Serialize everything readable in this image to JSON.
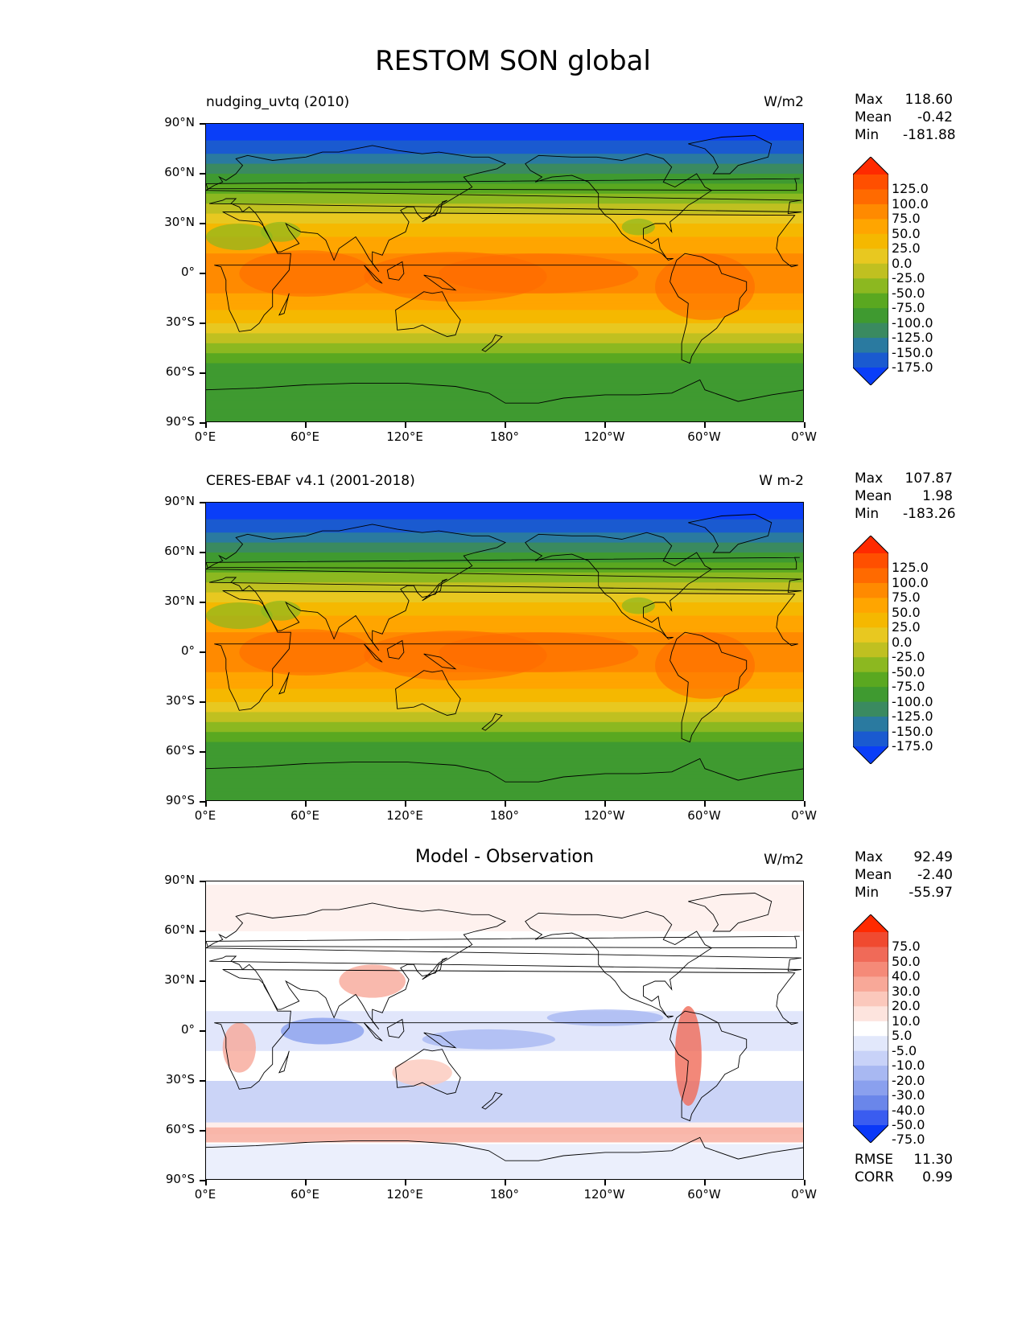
{
  "title": "RESTOM SON global",
  "axes": {
    "lat_ticks": [
      "90°N",
      "60°N",
      "30°N",
      "0°",
      "30°S",
      "60°S",
      "90°S"
    ],
    "lon_ticks": [
      "0°E",
      "60°E",
      "120°E",
      "180°",
      "120°W",
      "60°W",
      "0°W"
    ]
  },
  "panels": [
    {
      "id": "model",
      "left_title": "nudging_uvtq (2010)",
      "center_title": "",
      "units": "W/m2",
      "stats": {
        "max_label": "Max",
        "max": "118.60",
        "mean_label": "Mean",
        "mean": "-0.42",
        "min_label": "Min",
        "min": "-181.88"
      },
      "colorbar": {
        "levels": [
          "125.0",
          "100.0",
          "75.0",
          "50.0",
          "25.0",
          "0.0",
          "-25.0",
          "-50.0",
          "-75.0",
          "-100.0",
          "-125.0",
          "-150.0",
          "-175.0"
        ],
        "colors": [
          "#ff2a00",
          "#ff4f00",
          "#ff6a00",
          "#ff8a00",
          "#ffa500",
          "#f5b800",
          "#e8c820",
          "#c0c020",
          "#8cb820",
          "#5aa820",
          "#3f9a30",
          "#3a8a60",
          "#2a7aa0",
          "#1a5ad0",
          "#0a3ef8"
        ]
      }
    },
    {
      "id": "obs",
      "left_title": "CERES-EBAF v4.1 (2001-2018)",
      "center_title": "",
      "units": "W m-2",
      "stats": {
        "max_label": "Max",
        "max": "107.87",
        "mean_label": "Mean",
        "mean": "1.98",
        "min_label": "Min",
        "min": "-183.26"
      },
      "colorbar": {
        "levels": [
          "125.0",
          "100.0",
          "75.0",
          "50.0",
          "25.0",
          "0.0",
          "-25.0",
          "-50.0",
          "-75.0",
          "-100.0",
          "-125.0",
          "-150.0",
          "-175.0"
        ],
        "colors": [
          "#ff2a00",
          "#ff4f00",
          "#ff6a00",
          "#ff8a00",
          "#ffa500",
          "#f5b800",
          "#e8c820",
          "#c0c020",
          "#8cb820",
          "#5aa820",
          "#3f9a30",
          "#3a8a60",
          "#2a7aa0",
          "#1a5ad0",
          "#0a3ef8"
        ]
      }
    },
    {
      "id": "diff",
      "left_title": "",
      "center_title": "Model - Observation",
      "units": "W/m2",
      "stats": {
        "max_label": "Max",
        "max": "92.49",
        "mean_label": "Mean",
        "mean": "-2.40",
        "min_label": "Min",
        "min": "-55.97"
      },
      "colorbar": {
        "levels": [
          "75.0",
          "50.0",
          "40.0",
          "30.0",
          "20.0",
          "10.0",
          "5.0",
          "-5.0",
          "-10.0",
          "-20.0",
          "-30.0",
          "-40.0",
          "-50.0",
          "-75.0"
        ],
        "colors": [
          "#ff2a00",
          "#f04a30",
          "#f06a58",
          "#f58a78",
          "#f8a898",
          "#fbc8bc",
          "#fde4de",
          "#ffffff",
          "#e2e8fb",
          "#c8d2f8",
          "#a8b8f2",
          "#8aa0ee",
          "#6a86ea",
          "#3a5cf0",
          "#0a38f8"
        ]
      },
      "rmse_label": "RMSE",
      "rmse": "11.30",
      "corr_label": "CORR",
      "corr": "0.99"
    }
  ]
}
